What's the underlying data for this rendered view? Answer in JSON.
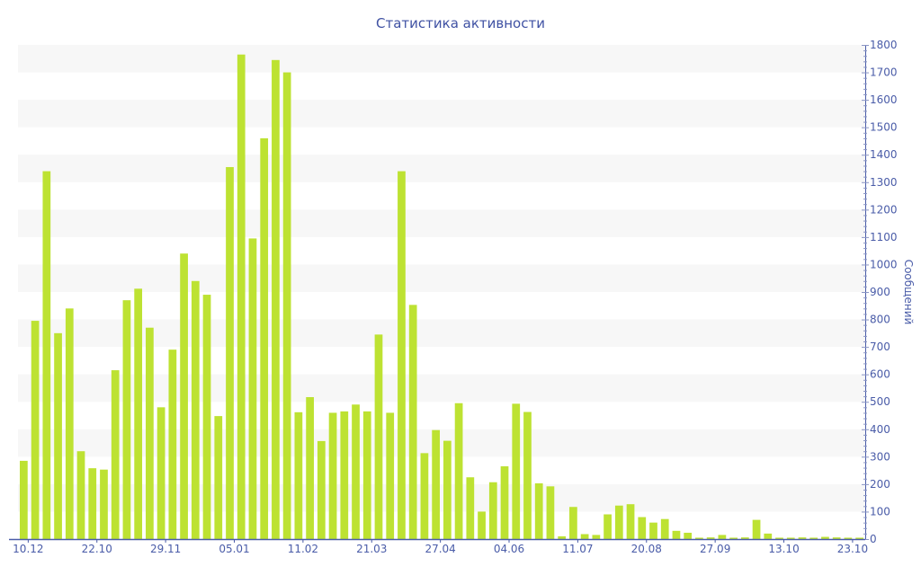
{
  "chart_data": {
    "type": "bar",
    "title": "Статистика активности",
    "xlabel": "",
    "ylabel": "Сообщений",
    "ylim": [
      0,
      1800
    ],
    "y_ticks": [
      0,
      100,
      200,
      300,
      400,
      500,
      600,
      700,
      800,
      900,
      1000,
      1100,
      1200,
      1300,
      1400,
      1500,
      1600,
      1700,
      1800
    ],
    "y_axis_side": "right",
    "grid": "alternating horizontal bands",
    "x_tick_labels": [
      {
        "index": 0,
        "label": "10.12"
      },
      {
        "index": 6,
        "label": "22.10"
      },
      {
        "index": 12,
        "label": "29.11"
      },
      {
        "index": 18,
        "label": "05.01"
      },
      {
        "index": 24,
        "label": "11.02"
      },
      {
        "index": 30,
        "label": "21.03"
      },
      {
        "index": 36,
        "label": "27.04"
      },
      {
        "index": 42,
        "label": "04.06"
      },
      {
        "index": 48,
        "label": "11.07"
      },
      {
        "index": 54,
        "label": "20.08"
      },
      {
        "index": 60,
        "label": "27.09"
      },
      {
        "index": 66,
        "label": "13.10"
      },
      {
        "index": 72,
        "label": "23.10"
      }
    ],
    "values": [
      285,
      795,
      1340,
      750,
      840,
      320,
      258,
      253,
      615,
      870,
      912,
      770,
      480,
      690,
      1040,
      940,
      890,
      448,
      1355,
      1765,
      1095,
      1460,
      1745,
      1700,
      462,
      517,
      357,
      460,
      465,
      490,
      465,
      745,
      460,
      1340,
      853,
      313,
      397,
      358,
      495,
      225,
      100,
      207,
      265,
      493,
      463,
      203,
      192,
      10,
      117,
      18,
      15,
      90,
      122,
      127,
      80,
      60,
      73,
      30,
      23,
      5,
      6,
      15,
      5,
      6,
      70,
      20,
      5,
      5,
      6,
      5,
      8,
      6,
      5,
      5
    ],
    "colors": {
      "bar": "#bde232",
      "axis": "#4a5ca8",
      "band": "#f7f7f7",
      "title": "#3f51a3"
    }
  }
}
